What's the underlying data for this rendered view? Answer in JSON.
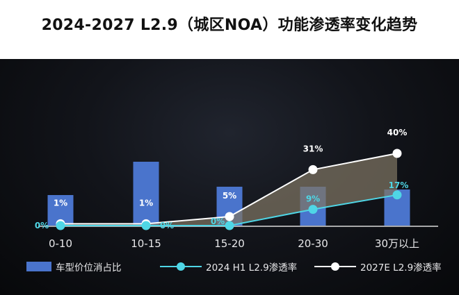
{
  "title": "2024-2027 L2.9（城区NOA）功能渗透率变化趋势",
  "colors": {
    "bar": "#4a74cc",
    "h1": "#4fd6e6",
    "e2027": "#ffffff",
    "band": "#7e7563"
  },
  "chart_data": {
    "type": "bar",
    "categories": [
      "0-10",
      "10-15",
      "15-20",
      "20-30",
      "30万以上"
    ],
    "bar_series": {
      "name": "车型价位消占比",
      "values": [
        5.5,
        11.5,
        7,
        7,
        6.5
      ]
    },
    "line_series": [
      {
        "name": "2024 H1 L2.9渗透率",
        "values": [
          0,
          0,
          0,
          9,
          17
        ],
        "labels": [
          "0%",
          "0%",
          "0%",
          "9%",
          "17%"
        ]
      },
      {
        "name": "2027E L2.9渗透率",
        "values": [
          1,
          1,
          5,
          31,
          40
        ],
        "labels": [
          "1%",
          "1%",
          "5%",
          "31%",
          "40%"
        ]
      }
    ],
    "xlabel": "",
    "ylabel": "",
    "ylim_line": [
      0,
      50
    ],
    "grid": false,
    "legend_position": "bottom"
  },
  "legend": {
    "bar_label": "车型价位消占比",
    "h1_label": "2024 H1 L2.9渗透率",
    "e2027_label": "2027E L2.9渗透率"
  }
}
